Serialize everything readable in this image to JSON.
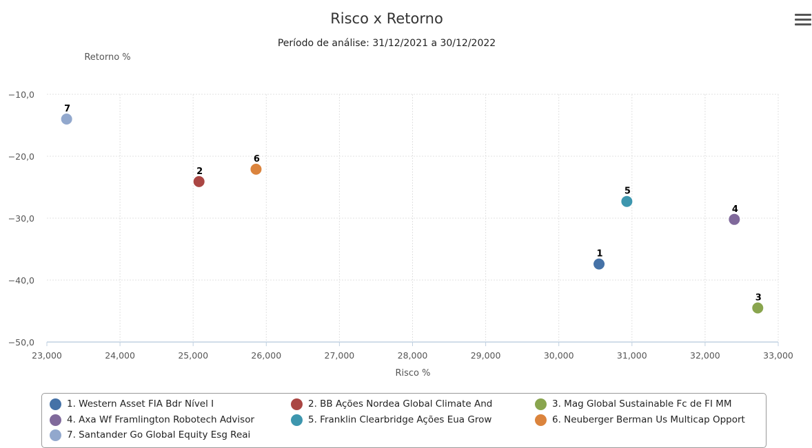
{
  "chart_data": {
    "type": "scatter",
    "title": "Risco x Retorno",
    "subtitle": "Período de análise: 31/12/2021 a 30/12/2022",
    "xlabel": "Risco %",
    "ylabel": "Retorno %",
    "xlim": [
      23,
      33
    ],
    "ylim": [
      -50,
      -10
    ],
    "xticks": [
      23,
      24,
      25,
      26,
      27,
      28,
      29,
      30,
      31,
      32,
      33
    ],
    "xtick_labels": [
      "23,000",
      "24,000",
      "25,000",
      "26,000",
      "27,000",
      "28,000",
      "29,000",
      "30,000",
      "31,000",
      "32,000",
      "33,000"
    ],
    "yticks": [
      -10,
      -20,
      -30,
      -40,
      -50
    ],
    "ytick_labels": [
      "−10,0",
      "−20,0",
      "−30,0",
      "−40,0",
      "−50,0"
    ],
    "grid": true,
    "legend_position": "bottom",
    "series": [
      {
        "name": "1. Western Asset FIA Bdr Nível I",
        "label": "1",
        "x": 30.55,
        "y": -37.4,
        "color": "#4572A7"
      },
      {
        "name": "2. BB Ações Nordea Global Climate And",
        "label": "2",
        "x": 25.08,
        "y": -24.1,
        "color": "#AA4643"
      },
      {
        "name": "3. Mag Global Sustainable Fc de FI MM",
        "label": "3",
        "x": 32.72,
        "y": -44.5,
        "color": "#89A54E"
      },
      {
        "name": "4. Axa Wf Framlington Robotech Advisor",
        "label": "4",
        "x": 32.4,
        "y": -30.2,
        "color": "#80699B"
      },
      {
        "name": "5. Franklin Clearbridge Ações Eua Grow",
        "label": "5",
        "x": 30.93,
        "y": -27.3,
        "color": "#3D96AE"
      },
      {
        "name": "6. Neuberger Berman Us Multicap Opport",
        "label": "6",
        "x": 25.86,
        "y": -22.1,
        "color": "#DB843D"
      },
      {
        "name": "7. Santander Go Global Equity Esg Reai",
        "label": "7",
        "x": 23.27,
        "y": -14.0,
        "color": "#92A8CD"
      }
    ]
  }
}
